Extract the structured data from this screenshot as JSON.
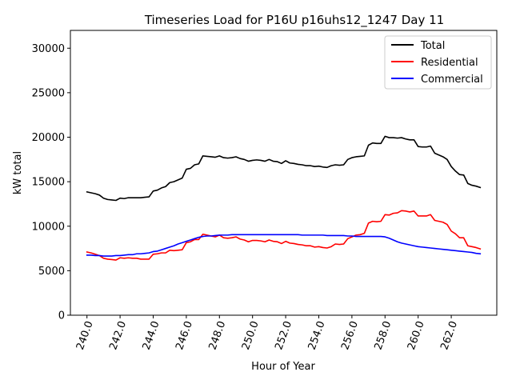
{
  "chart_data": {
    "type": "line",
    "title": "Timeseries Load for P16U p16uhs12_1247  Day 11",
    "xlabel": "Hour of Year",
    "ylabel": "kW total",
    "xlim": [
      239.0,
      264.75
    ],
    "ylim": [
      0,
      32000
    ],
    "x_ticks": [
      240,
      242,
      244,
      246,
      248,
      250,
      252,
      254,
      256,
      258,
      260,
      262
    ],
    "x_tick_labels": [
      "240.0",
      "242.0",
      "244.0",
      "246.0",
      "248.0",
      "250.0",
      "252.0",
      "254.0",
      "256.0",
      "258.0",
      "260.0",
      "262.0"
    ],
    "y_ticks": [
      0,
      5000,
      10000,
      15000,
      20000,
      25000,
      30000
    ],
    "y_tick_labels": [
      "0",
      "5000",
      "10000",
      "15000",
      "20000",
      "25000",
      "30000"
    ],
    "legend_position": "top-right",
    "x_start": 240.0,
    "x_step": 0.25,
    "series": [
      {
        "name": "Total",
        "color": "#000000",
        "values": [
          13850,
          13750,
          13650,
          13500,
          13150,
          13000,
          12950,
          12900,
          13150,
          13100,
          13200,
          13200,
          13200,
          13200,
          13250,
          13300,
          13950,
          14050,
          14300,
          14450,
          14900,
          15000,
          15200,
          15400,
          16400,
          16500,
          16900,
          17000,
          17900,
          17850,
          17800,
          17750,
          17900,
          17700,
          17650,
          17700,
          17800,
          17600,
          17500,
          17300,
          17400,
          17450,
          17400,
          17300,
          17500,
          17300,
          17250,
          17050,
          17350,
          17100,
          17050,
          16950,
          16900,
          16800,
          16800,
          16700,
          16750,
          16650,
          16600,
          16800,
          16900,
          16850,
          16900,
          17500,
          17700,
          17800,
          17850,
          17900,
          19100,
          19350,
          19300,
          19300,
          20100,
          19950,
          19950,
          19900,
          19950,
          19800,
          19700,
          19700,
          18950,
          18900,
          18900,
          19000,
          18200,
          18000,
          17800,
          17500,
          16700,
          16200,
          15800,
          15750,
          14800,
          14600,
          14500,
          14350
        ]
      },
      {
        "name": "Residential",
        "color": "#ff0000",
        "values": [
          7100,
          7000,
          6850,
          6700,
          6400,
          6300,
          6250,
          6200,
          6450,
          6400,
          6450,
          6400,
          6400,
          6300,
          6300,
          6300,
          6850,
          6900,
          7000,
          7000,
          7300,
          7250,
          7300,
          7350,
          8150,
          8250,
          8500,
          8500,
          9100,
          9000,
          8900,
          8800,
          9000,
          8700,
          8650,
          8700,
          8800,
          8550,
          8450,
          8250,
          8400,
          8400,
          8350,
          8250,
          8450,
          8300,
          8250,
          8050,
          8300,
          8100,
          8050,
          7950,
          7900,
          7800,
          7800,
          7650,
          7700,
          7600,
          7550,
          7700,
          8000,
          7950,
          8000,
          8600,
          8800,
          9000,
          9050,
          9200,
          10350,
          10550,
          10500,
          10550,
          11300,
          11250,
          11450,
          11500,
          11750,
          11700,
          11600,
          11700,
          11150,
          11150,
          11150,
          11300,
          10650,
          10550,
          10450,
          10200,
          9450,
          9150,
          8700,
          8700,
          7800,
          7700,
          7600,
          7450
        ]
      },
      {
        "name": "Commercial",
        "color": "#0000ff",
        "values": [
          6750,
          6750,
          6700,
          6700,
          6650,
          6650,
          6650,
          6700,
          6700,
          6750,
          6800,
          6800,
          6900,
          6900,
          6950,
          7000,
          7150,
          7200,
          7350,
          7500,
          7650,
          7800,
          8000,
          8150,
          8300,
          8450,
          8600,
          8750,
          8850,
          8900,
          8900,
          8950,
          9000,
          9000,
          9000,
          9050,
          9050,
          9050,
          9050,
          9050,
          9050,
          9050,
          9050,
          9050,
          9050,
          9050,
          9050,
          9050,
          9050,
          9050,
          9050,
          9050,
          9000,
          9000,
          9000,
          9000,
          9000,
          9000,
          8950,
          8950,
          8950,
          8950,
          8950,
          8900,
          8900,
          8850,
          8850,
          8850,
          8850,
          8850,
          8850,
          8850,
          8800,
          8650,
          8450,
          8250,
          8100,
          8000,
          7900,
          7800,
          7700,
          7650,
          7600,
          7550,
          7500,
          7450,
          7400,
          7350,
          7300,
          7250,
          7200,
          7150,
          7100,
          7050,
          6950,
          6900
        ]
      }
    ]
  }
}
